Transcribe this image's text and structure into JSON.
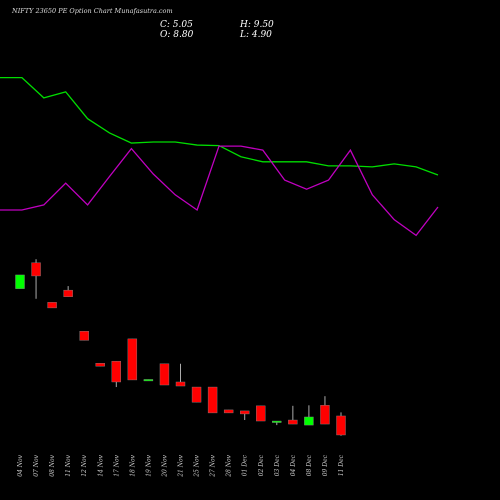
{
  "chart_data": {
    "type": "candlestick",
    "title": "NIFTY 23650  PE Option  Chart Munafasutra.com",
    "summary_labels": [
      "C: 5.05",
      "H: 9.50",
      "O: 8.80",
      "L: 4.90"
    ],
    "categories": [
      "04 Nov",
      "07 Nov",
      "08 Nov",
      "11 Nov",
      "12 Nov",
      "14 Nov",
      "17 Nov",
      "18 Nov",
      "19 Nov",
      "20 Nov",
      "21 Nov",
      "25 Nov",
      "27 Nov",
      "28 Nov",
      "01 Dec",
      "02 Dec",
      "03 Dec",
      "04 Dec",
      "08 Dec",
      "09 Dec",
      "11 Dec"
    ],
    "open": [
      33.9,
      39.0,
      31.2,
      33.6,
      25.5,
      19.2,
      19.6,
      24.0,
      15.8,
      19.1,
      15.5,
      14.5,
      14.5,
      10.0,
      9.8,
      10.8,
      7.6,
      8.0,
      7.0,
      10.9,
      8.8
    ],
    "high": [
      36.6,
      39.7,
      31.2,
      34.4,
      25.5,
      19.2,
      19.6,
      24.0,
      16.0,
      19.1,
      19.1,
      14.5,
      14.5,
      10.0,
      9.8,
      10.8,
      7.8,
      10.8,
      10.9,
      12.7,
      9.5
    ],
    "low": [
      33.9,
      31.9,
      30.1,
      32.3,
      23.7,
      18.6,
      14.5,
      15.9,
      15.8,
      14.9,
      14.7,
      11.5,
      9.4,
      9.4,
      8.0,
      7.8,
      7.0,
      7.2,
      7.0,
      7.2,
      4.9
    ],
    "close": [
      36.6,
      36.4,
      30.1,
      32.3,
      23.7,
      18.6,
      15.5,
      15.9,
      16.0,
      14.9,
      14.7,
      11.5,
      9.4,
      9.4,
      9.2,
      7.8,
      7.8,
      7.2,
      8.6,
      7.2,
      5.05
    ],
    "up_color": "#00ff00",
    "down_color": "#ff0000",
    "series": [
      {
        "color": "#00dd00",
        "values": [
          75.5,
          75.5,
          71.5,
          72.7,
          67.4,
          64.6,
          62.6,
          62.8,
          62.8,
          62.2,
          62.1,
          59.9,
          58.9,
          58.9,
          58.9,
          58.1,
          58.1,
          57.9,
          58.5,
          57.9,
          56.3
        ]
      },
      {
        "color": "#c000c0",
        "values": [
          49.4,
          49.4,
          50.4,
          54.7,
          50.4,
          56.0,
          61.5,
          56.5,
          52.4,
          49.4,
          62.0,
          62.0,
          61.2,
          55.3,
          53.5,
          55.3,
          61.2,
          52.4,
          47.5,
          44.4,
          50.0
        ]
      }
    ],
    "ylim": [
      0,
      90.8
    ]
  }
}
